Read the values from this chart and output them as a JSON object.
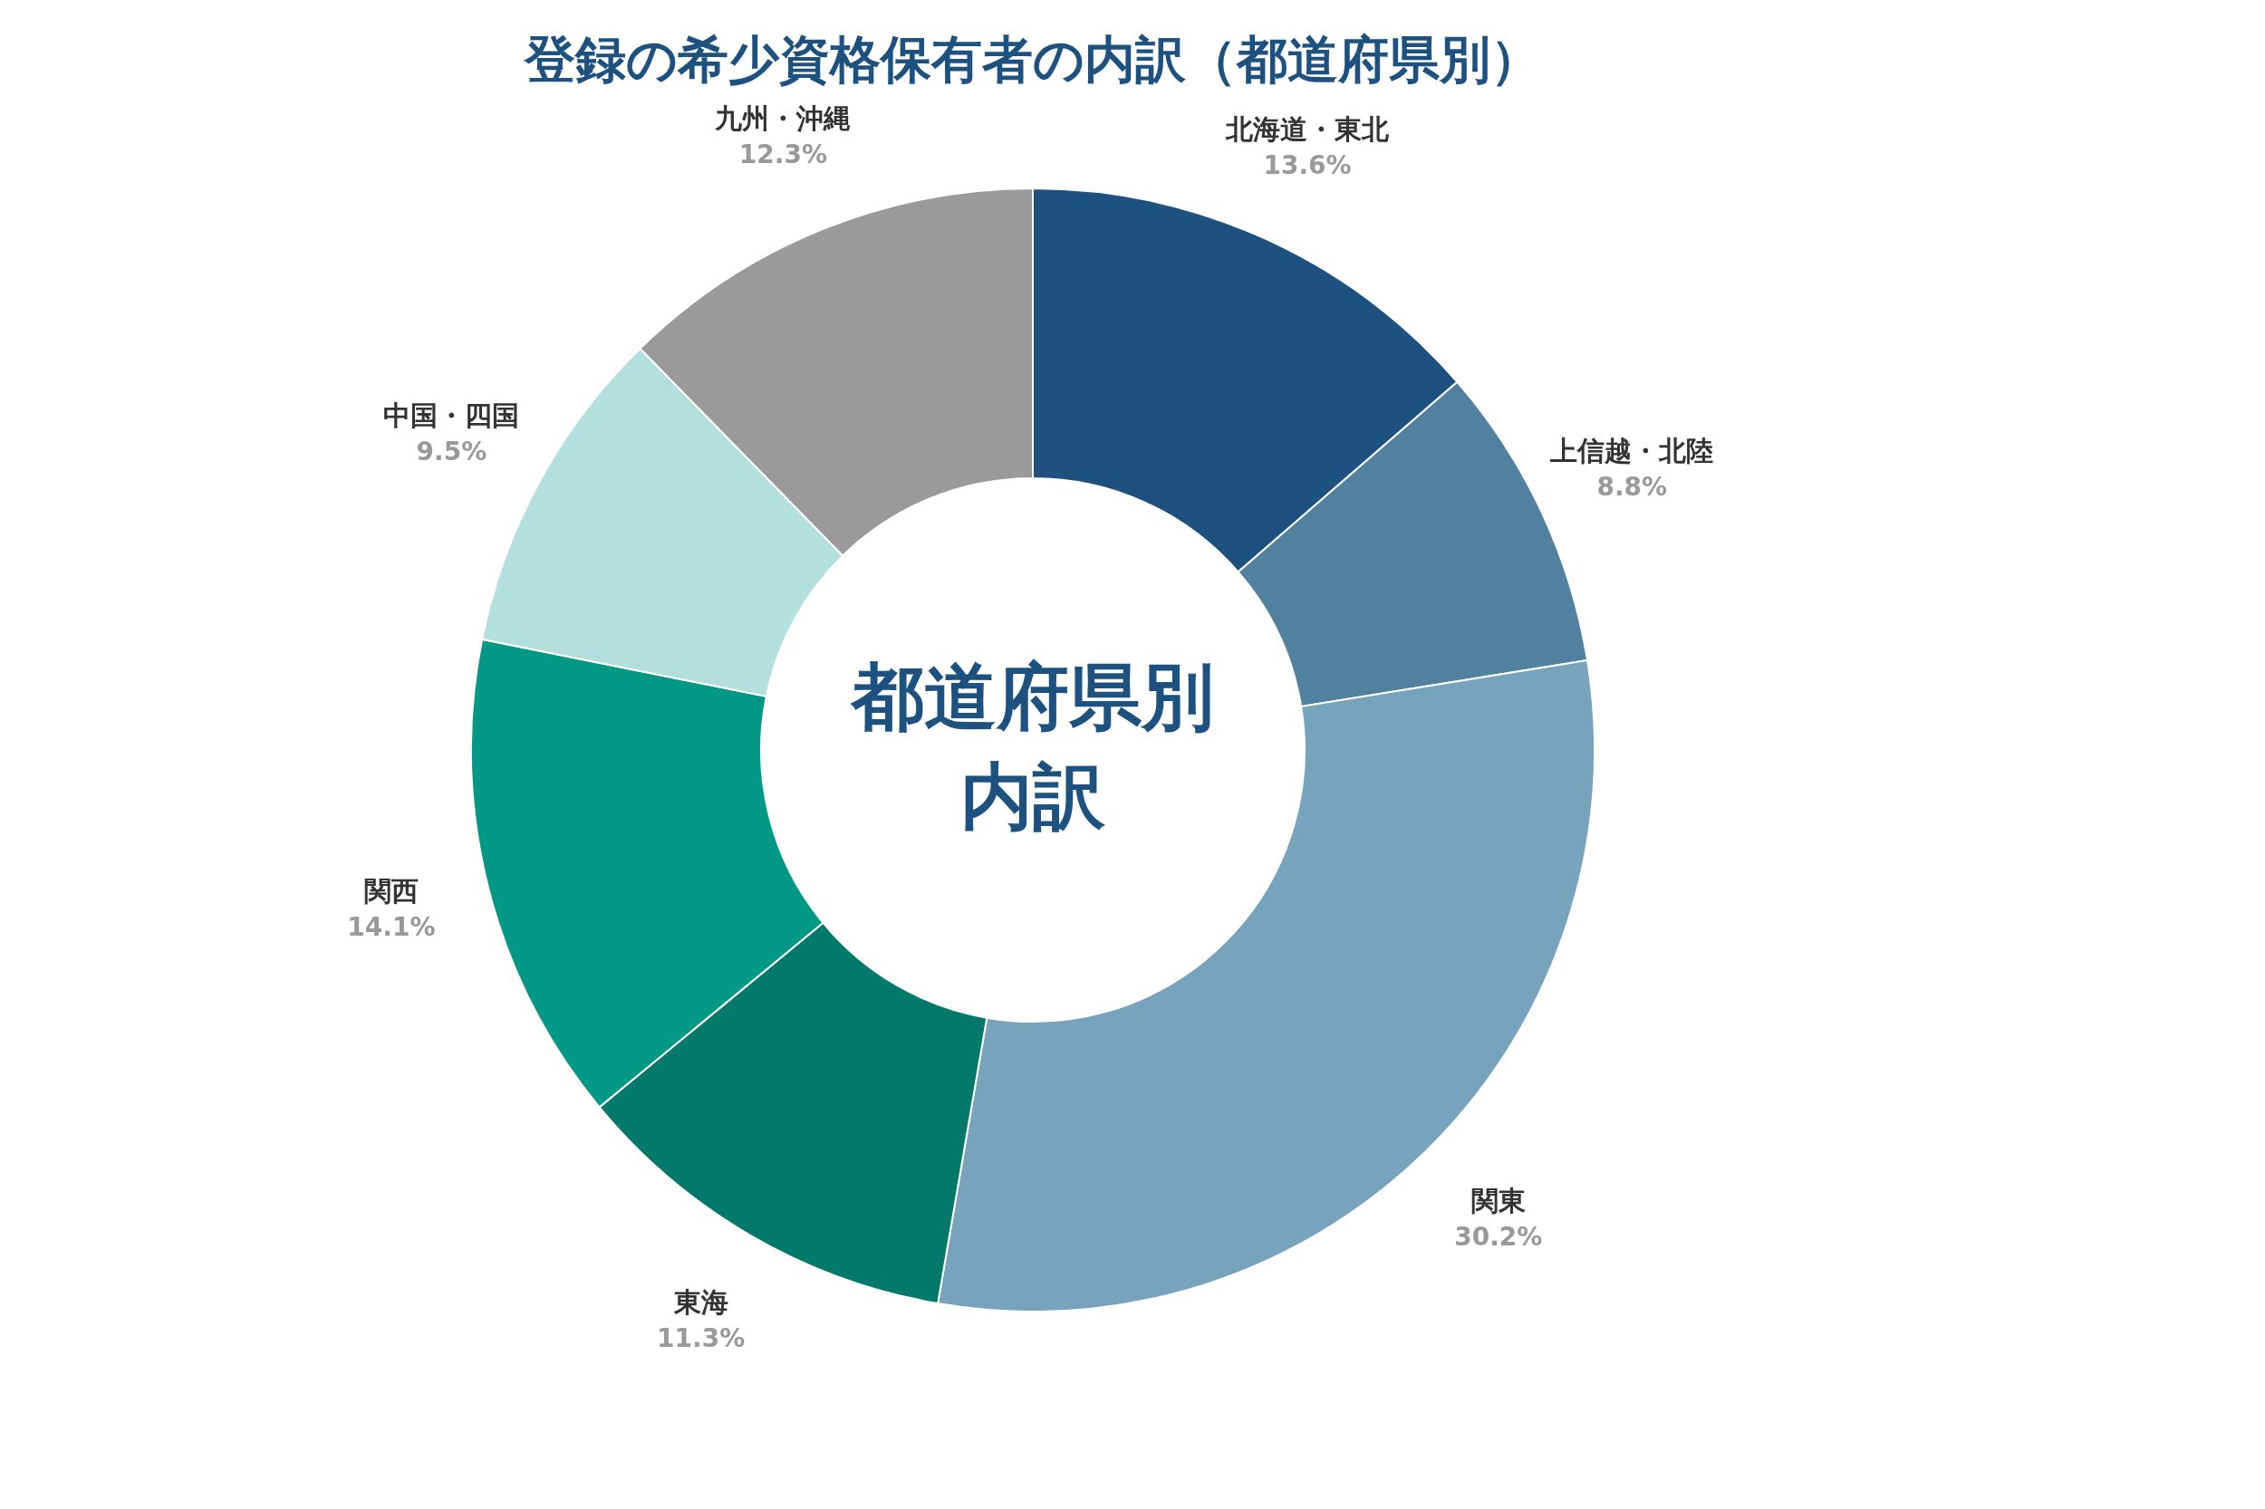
{
  "chart_data": {
    "type": "donut",
    "title": "登録の希少資格保有者の内訳（都道府県別）",
    "categories": [
      "北海道・東北",
      "上信越・北陸",
      "関東",
      "東海",
      "関西",
      "中国・四国",
      "九州・沖縄"
    ],
    "values": [
      13.6,
      8.8,
      30.2,
      11.3,
      14.1,
      9.5,
      12.3
    ],
    "value_labels": [
      "13.6%",
      "8.8%",
      "30.2%",
      "11.3%",
      "14.1%",
      "9.5%",
      "12.3%"
    ],
    "colors": [
      "#1d5280",
      "#52809f",
      "#78a3bd",
      "#03796b",
      "#019885",
      "#b3e0dc",
      "#9a9a9a"
    ],
    "annotations": [
      "都道府県別",
      "内訳"
    ]
  }
}
